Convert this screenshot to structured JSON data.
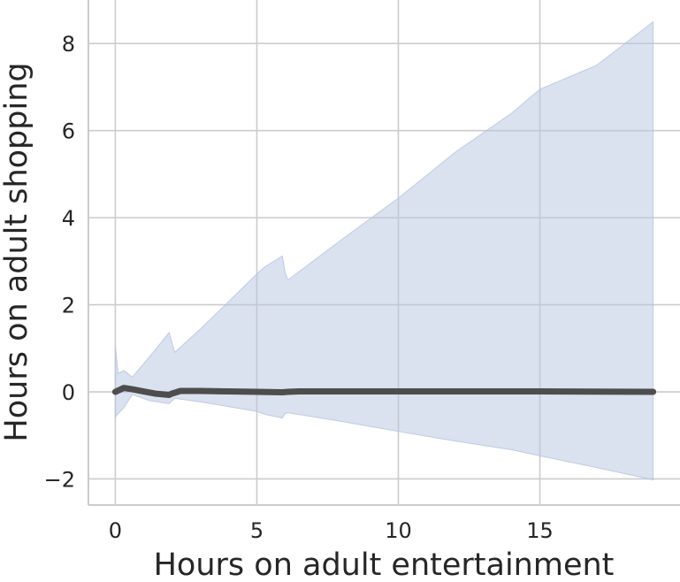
{
  "chart_data": {
    "type": "line",
    "title": "",
    "xlabel": "Hours on adult entertainment",
    "ylabel": "Hours on adult shopping",
    "xlim": [
      -0.95,
      19.95
    ],
    "ylim": [
      -2.6,
      9.0
    ],
    "xticks": [
      0,
      5,
      10,
      15
    ],
    "xtick_labels": [
      "0",
      "5",
      "10",
      "15"
    ],
    "yticks": [
      -2,
      0,
      2,
      4,
      6,
      8
    ],
    "ytick_labels": [
      "−2",
      "0",
      "2",
      "4",
      "6",
      "8"
    ],
    "grid": true,
    "legend": "none",
    "series": [
      {
        "x": [
          0,
          0.3,
          0.6,
          1,
          1.4,
          1.9,
          2,
          2.3,
          3,
          4,
          5,
          5.9,
          6.1,
          6.5,
          8,
          10,
          12,
          15,
          19
        ],
        "y": [
          0,
          0.09,
          0.06,
          0.01,
          -0.04,
          -0.07,
          -0.04,
          0.02,
          0.02,
          0.01,
          0,
          -0.01,
          0,
          0.01,
          0.01,
          0.01,
          0.01,
          0.01,
          0
        ],
        "line_color": "#4d4d4d"
      }
    ],
    "confidence_band": {
      "color": "#b5c3e0",
      "x": [
        0,
        0.1,
        0.3,
        0.6,
        1.2,
        1.9,
        2.1,
        3,
        4,
        5,
        5.3,
        5.9,
        6,
        6.1,
        8,
        10,
        12,
        14,
        15,
        17,
        19
      ],
      "upper": [
        1.07,
        0.42,
        0.49,
        0.34,
        0.8,
        1.36,
        0.91,
        1.44,
        2.07,
        2.71,
        2.88,
        3.12,
        2.74,
        2.57,
        3.5,
        4.45,
        5.5,
        6.4,
        6.95,
        7.5,
        8.5
      ],
      "lower": [
        -0.58,
        -0.5,
        -0.37,
        -0.06,
        -0.2,
        -0.27,
        -0.15,
        -0.23,
        -0.34,
        -0.45,
        -0.52,
        -0.6,
        -0.5,
        -0.48,
        -0.68,
        -0.91,
        -1.13,
        -1.33,
        -1.47,
        -1.74,
        -2.02
      ]
    }
  }
}
